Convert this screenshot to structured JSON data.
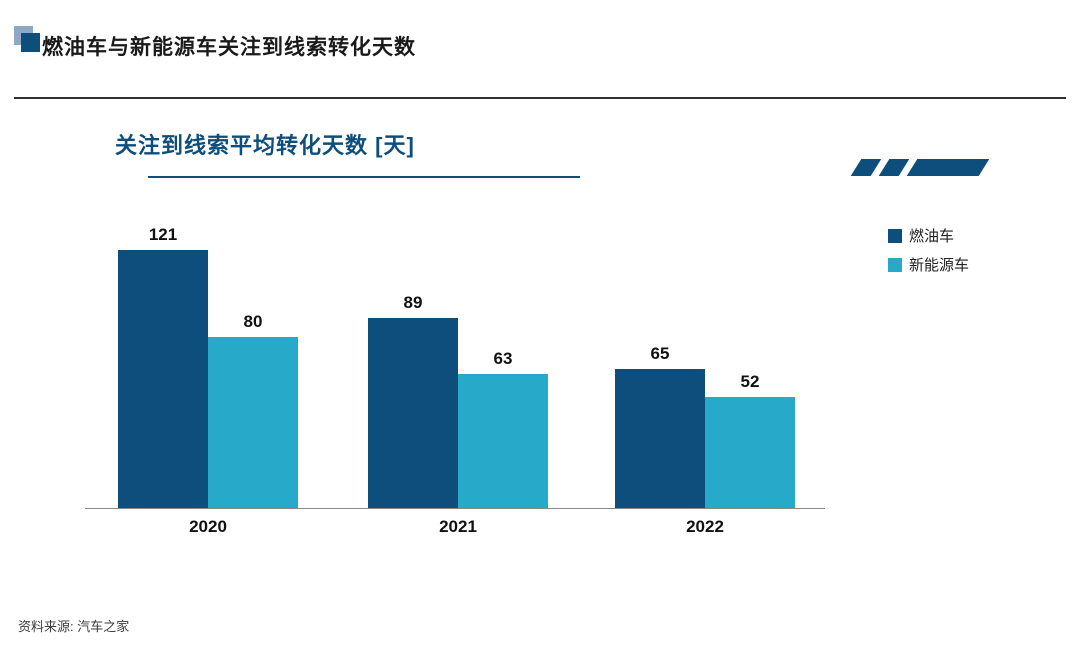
{
  "header": {
    "title": "燃油车与新能源车关注到线索转化天数"
  },
  "chart": {
    "title": "关注到线索平均转化天数 [天]"
  },
  "footer": {
    "source": "资料来源: 汽车之家"
  },
  "colors": {
    "primary": "#0d4e7c",
    "secondary": "#27a9c9",
    "accent_light": "#8fa8c6"
  },
  "chart_data": {
    "type": "bar",
    "title": "关注到线索平均转化天数 [天]",
    "categories": [
      "2020",
      "2021",
      "2022"
    ],
    "series": [
      {
        "name": "燃油车",
        "values": [
          121,
          89,
          65
        ],
        "color": "#0d4e7c"
      },
      {
        "name": "新能源车",
        "values": [
          80,
          63,
          52
        ],
        "color": "#27a9c9"
      }
    ],
    "xlabel": "",
    "ylabel": "",
    "ylim": [
      0,
      130
    ],
    "grid": false,
    "legend_position": "right",
    "value_labels": true
  }
}
